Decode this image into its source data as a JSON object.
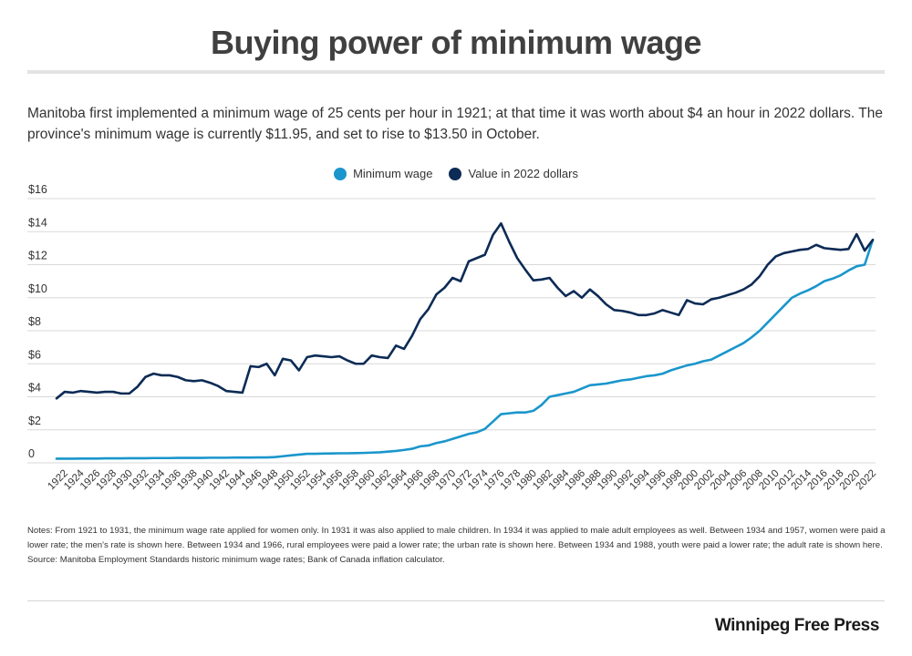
{
  "chart_data": {
    "type": "line",
    "title": "Buying power of minimum wage",
    "subtitle": "Manitoba first implemented a minimum wage of 25 cents per hour in 1921; at that time it was worth about $4 an hour in 2022 dollars. The province's minimum wage is currently $11.95, and set to rise to $13.50 in October.",
    "x": [
      1921,
      1922,
      1923,
      1924,
      1925,
      1926,
      1927,
      1928,
      1929,
      1930,
      1931,
      1932,
      1933,
      1934,
      1935,
      1936,
      1937,
      1938,
      1939,
      1940,
      1941,
      1942,
      1943,
      1944,
      1945,
      1946,
      1947,
      1948,
      1949,
      1950,
      1951,
      1952,
      1953,
      1954,
      1955,
      1956,
      1957,
      1958,
      1959,
      1960,
      1961,
      1962,
      1963,
      1964,
      1965,
      1966,
      1967,
      1968,
      1969,
      1970,
      1971,
      1972,
      1973,
      1974,
      1975,
      1976,
      1977,
      1978,
      1979,
      1980,
      1981,
      1982,
      1983,
      1984,
      1985,
      1986,
      1987,
      1988,
      1989,
      1990,
      1991,
      1992,
      1993,
      1994,
      1995,
      1996,
      1997,
      1998,
      1999,
      2000,
      2001,
      2002,
      2003,
      2004,
      2005,
      2006,
      2007,
      2008,
      2009,
      2010,
      2011,
      2012,
      2013,
      2014,
      2015,
      2016,
      2017,
      2018,
      2019,
      2020,
      2021,
      2022
    ],
    "series": [
      {
        "name": "Minimum wage",
        "color": "#1a96cc",
        "values": [
          0.25,
          0.25,
          0.25,
          0.26,
          0.26,
          0.26,
          0.27,
          0.27,
          0.27,
          0.28,
          0.28,
          0.28,
          0.29,
          0.29,
          0.29,
          0.3,
          0.3,
          0.3,
          0.3,
          0.31,
          0.31,
          0.31,
          0.32,
          0.32,
          0.32,
          0.33,
          0.33,
          0.35,
          0.4,
          0.45,
          0.5,
          0.55,
          0.55,
          0.56,
          0.57,
          0.58,
          0.58,
          0.59,
          0.6,
          0.62,
          0.64,
          0.68,
          0.72,
          0.78,
          0.85,
          1.0,
          1.05,
          1.2,
          1.3,
          1.45,
          1.6,
          1.75,
          1.85,
          2.05,
          2.5,
          2.95,
          3.0,
          3.05,
          3.05,
          3.15,
          3.5,
          4.0,
          4.1,
          4.2,
          4.3,
          4.5,
          4.7,
          4.75,
          4.8,
          4.9,
          5.0,
          5.05,
          5.15,
          5.25,
          5.3,
          5.4,
          5.6,
          5.75,
          5.9,
          6.0,
          6.15,
          6.25,
          6.5,
          6.75,
          7.0,
          7.25,
          7.6,
          8.0,
          8.5,
          9.0,
          9.5,
          10.0,
          10.25,
          10.45,
          10.7,
          11.0,
          11.15,
          11.35,
          11.65,
          11.9,
          12.0,
          13.5
        ]
      },
      {
        "name": "Value in 2022 dollars",
        "color": "#0c2b55",
        "values": [
          3.9,
          4.3,
          4.25,
          4.35,
          4.3,
          4.25,
          4.3,
          4.3,
          4.2,
          4.2,
          4.6,
          5.2,
          5.4,
          5.3,
          5.3,
          5.2,
          5.0,
          4.95,
          5.0,
          4.85,
          4.65,
          4.35,
          4.3,
          4.25,
          5.85,
          5.8,
          6.0,
          5.3,
          6.3,
          6.2,
          5.6,
          6.4,
          6.5,
          6.45,
          6.4,
          6.45,
          6.2,
          6.0,
          6.0,
          6.5,
          6.4,
          6.35,
          7.1,
          6.9,
          7.7,
          8.7,
          9.3,
          10.2,
          10.6,
          11.2,
          11.0,
          12.2,
          12.4,
          12.6,
          13.8,
          14.5,
          13.4,
          12.4,
          11.7,
          11.05,
          11.1,
          11.2,
          10.6,
          10.1,
          10.4,
          10.0,
          10.5,
          10.1,
          9.6,
          9.25,
          9.2,
          9.1,
          8.95,
          8.95,
          9.05,
          9.25,
          9.1,
          8.95,
          9.85,
          9.65,
          9.6,
          9.9,
          10.0,
          10.15,
          10.3,
          10.5,
          10.8,
          11.3,
          12.0,
          12.5,
          12.7,
          12.8,
          12.9,
          12.95,
          13.2,
          13.0,
          12.95,
          12.9,
          12.95,
          13.85,
          12.85,
          13.5
        ]
      }
    ],
    "y_ticks": [
      "0",
      "$2",
      "$4",
      "$6",
      "$8",
      "$10",
      "$12",
      "$14",
      "$16"
    ],
    "x_ticks": [
      1922,
      1924,
      1926,
      1928,
      1930,
      1932,
      1934,
      1936,
      1938,
      1940,
      1942,
      1944,
      1946,
      1948,
      1950,
      1952,
      1954,
      1956,
      1958,
      1960,
      1962,
      1964,
      1966,
      1968,
      1970,
      1972,
      1974,
      1976,
      1978,
      1980,
      1982,
      1984,
      1986,
      1988,
      1990,
      1992,
      1994,
      1996,
      1998,
      2000,
      2002,
      2004,
      2006,
      2008,
      2010,
      2012,
      2014,
      2016,
      2018,
      2020,
      2022
    ],
    "ylim": [
      0,
      16
    ],
    "xlabel": "",
    "ylabel": "",
    "grid": true,
    "legend_position": "top-center"
  },
  "notes": "Notes: From 1921 to 1931, the minimum wage rate applied for women only. In 1931 it was also applied to male children. In 1934 it was applied to male adult employees as well.  Between 1934 and 1957, women were paid a lower rate; the men's rate is shown here. Between 1934 and 1966, rural employees were paid a lower rate; the urban rate is shown here.  Between 1934 and 1988, youth were paid a lower rate; the adult rate is shown here. Source: Manitoba Employment Standards historic minimum wage rates; Bank of Canada inflation calculator.",
  "brand": "Winnipeg Free Press"
}
